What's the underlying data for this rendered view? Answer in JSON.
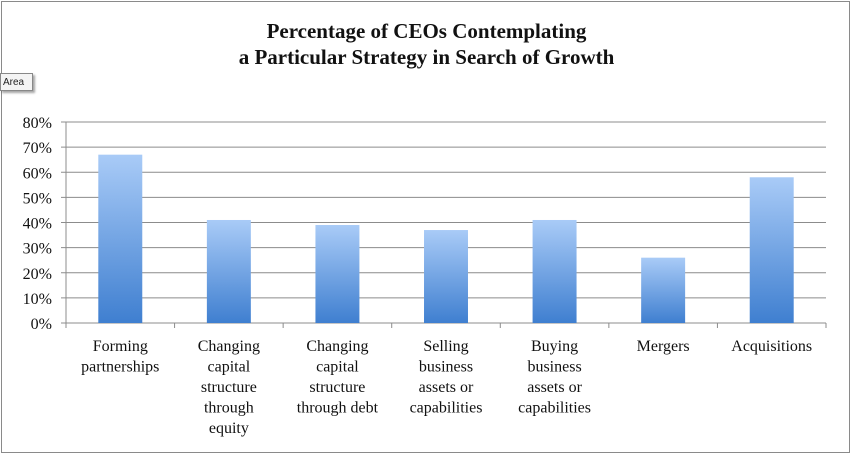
{
  "area_tag": "Area",
  "chart_data": {
    "type": "bar",
    "title_lines": [
      "Percentage of CEOs Contemplating",
      "a Particular Strategy in Search of  Growth"
    ],
    "xlabel": "",
    "ylabel": "",
    "ylim": [
      0,
      80
    ],
    "yticks": [
      "0%",
      "10%",
      "20%",
      "30%",
      "40%",
      "50%",
      "60%",
      "70%",
      "80%"
    ],
    "categories": [
      [
        "Forming",
        "partnerships"
      ],
      [
        "Changing",
        "capital",
        "structure",
        "through",
        "equity"
      ],
      [
        "Changing",
        "capital",
        "structure",
        "through debt"
      ],
      [
        "Selling",
        "business",
        "assets or",
        "capabilities"
      ],
      [
        "Buying",
        "business",
        "assets or",
        "capabilities"
      ],
      [
        "Mergers"
      ],
      [
        "Acquisitions"
      ]
    ],
    "values": [
      67,
      41,
      39,
      37,
      41,
      26,
      58
    ],
    "grid": true,
    "legend": "none",
    "colors": {
      "bar_top": "#a9cbf7",
      "bar_bottom": "#3f7fd0",
      "grid": "#8c8c8c"
    }
  }
}
